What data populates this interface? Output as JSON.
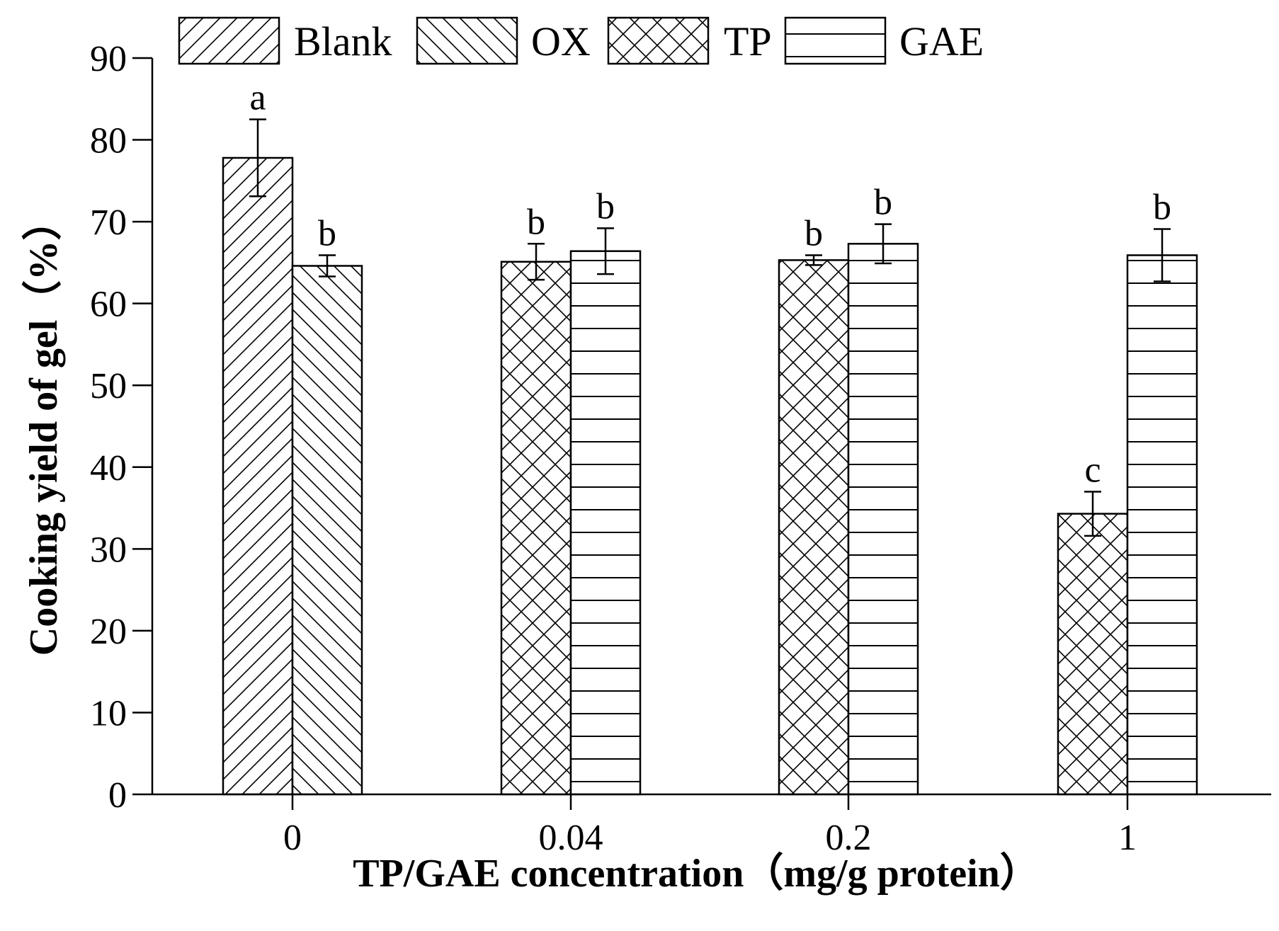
{
  "chart_data": {
    "type": "bar",
    "title": "",
    "xlabel": "TP/GAE concentration（mg/g protein）",
    "ylabel": "Cooking yield of gel（%）",
    "ylim": [
      0,
      90
    ],
    "yticks": [
      "0",
      "10",
      "20",
      "30",
      "40",
      "50",
      "60",
      "70",
      "80",
      "90"
    ],
    "categories": [
      "0",
      "0.04",
      "0.2",
      "1"
    ],
    "legend_position": "top",
    "series": [
      {
        "name": "Blank",
        "pattern": "diagonal-forward"
      },
      {
        "name": "OX",
        "pattern": "diagonal-backward"
      },
      {
        "name": "TP",
        "pattern": "crosshatch"
      },
      {
        "name": "GAE",
        "pattern": "horizontal"
      }
    ],
    "bars": [
      {
        "category": "0",
        "series": "Blank",
        "value": 77.8,
        "error": 4.7,
        "sig": "a"
      },
      {
        "category": "0",
        "series": "OX",
        "value": 64.6,
        "error": 1.3,
        "sig": "b"
      },
      {
        "category": "0.04",
        "series": "TP",
        "value": 65.1,
        "error": 2.2,
        "sig": "b"
      },
      {
        "category": "0.04",
        "series": "GAE",
        "value": 66.4,
        "error": 2.8,
        "sig": "b"
      },
      {
        "category": "0.2",
        "series": "TP",
        "value": 65.3,
        "error": 0.6,
        "sig": "b"
      },
      {
        "category": "0.2",
        "series": "GAE",
        "value": 67.3,
        "error": 2.4,
        "sig": "b"
      },
      {
        "category": "1",
        "series": "TP",
        "value": 34.3,
        "error": 2.7,
        "sig": "c"
      },
      {
        "category": "1",
        "series": "GAE",
        "value": 65.9,
        "error": 3.2,
        "sig": "b"
      }
    ]
  }
}
